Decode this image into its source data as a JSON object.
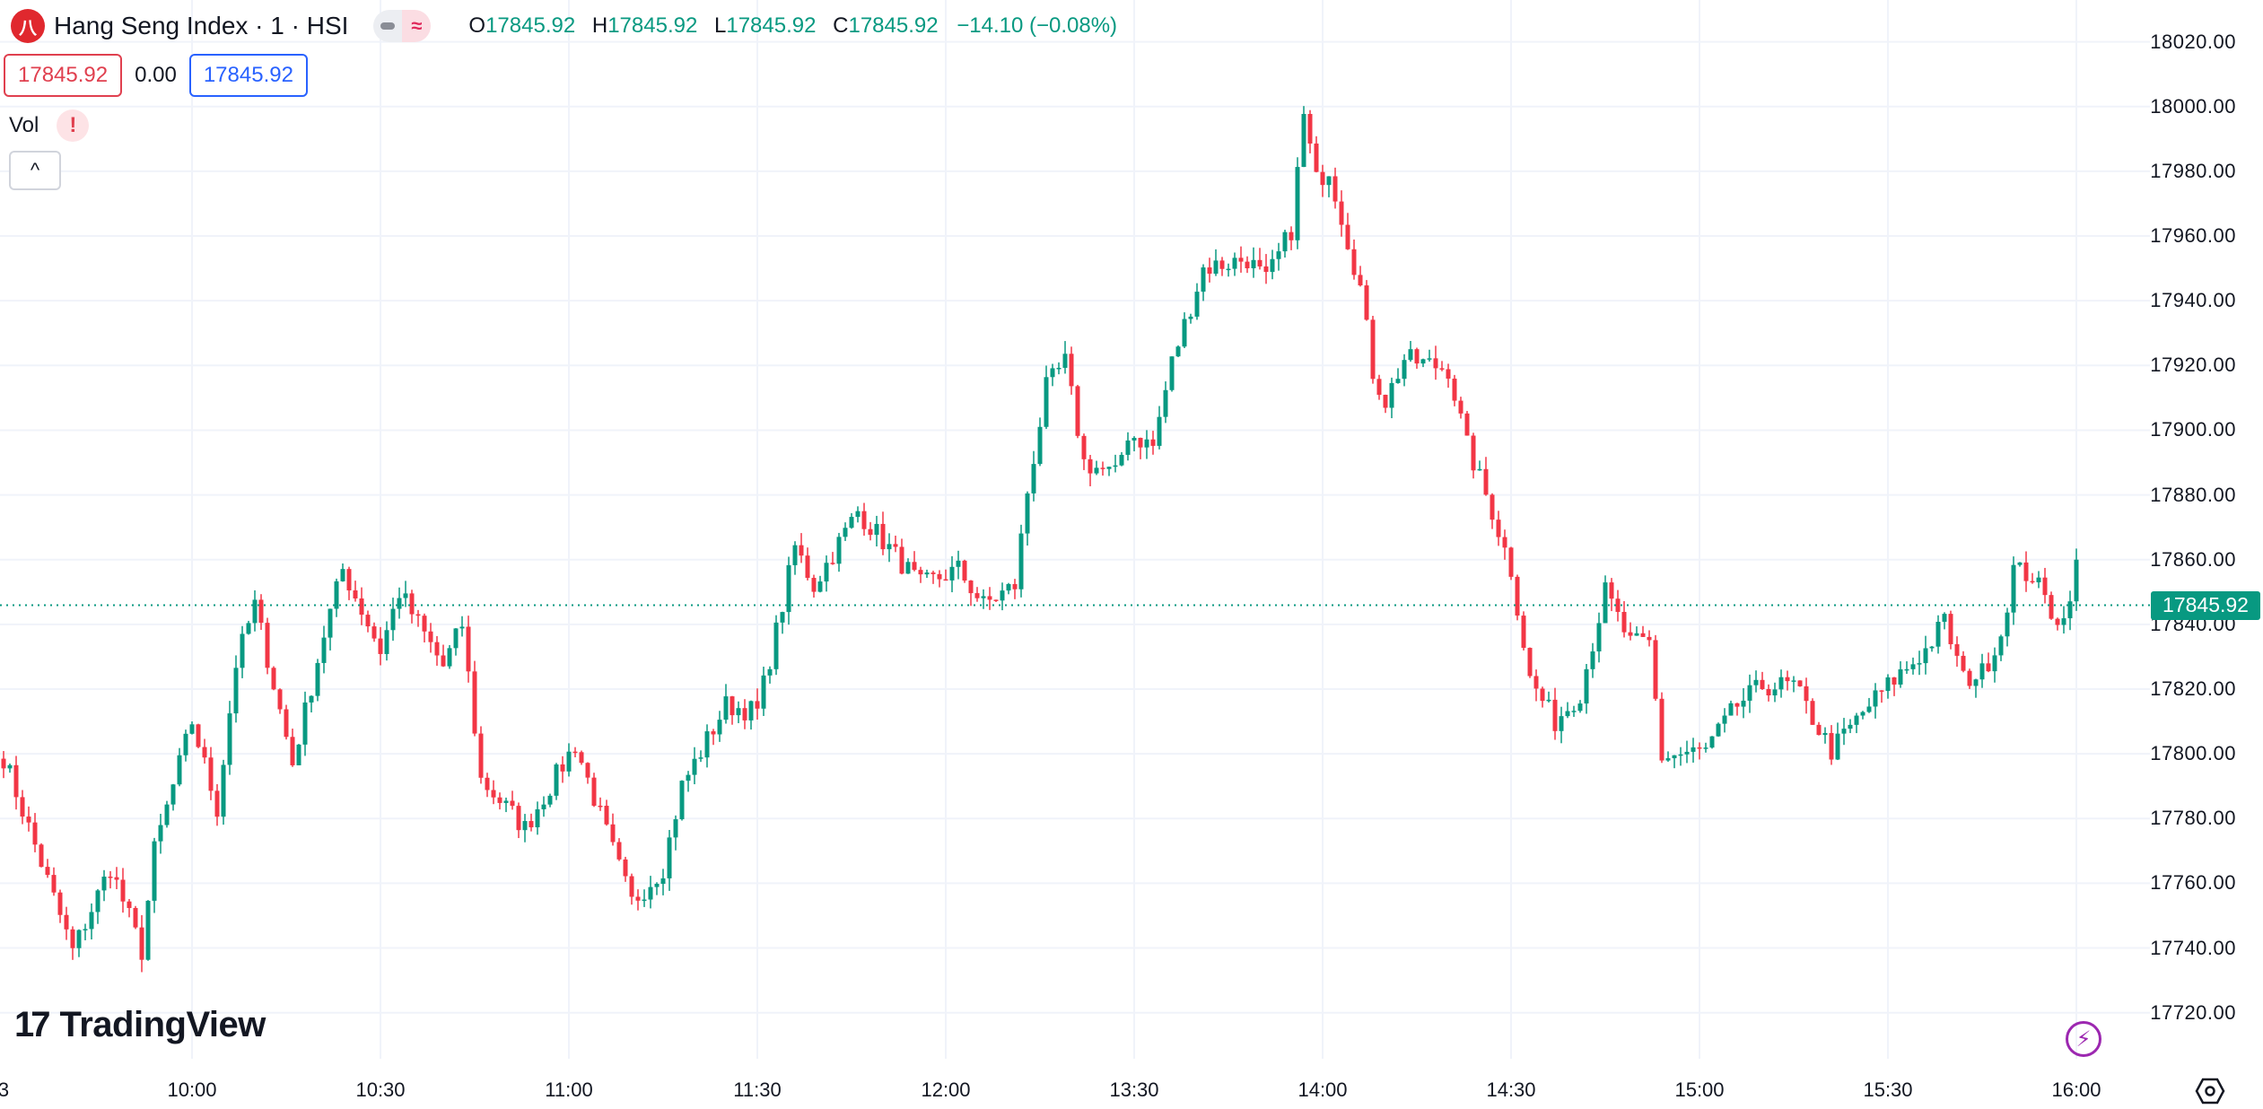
{
  "header": {
    "symbol_logo": "HK",
    "title": "Hang Seng Index · 1 · HSI",
    "ohlc": {
      "o_label": "O",
      "o": "17845.92",
      "h_label": "H",
      "h": "17845.92",
      "l_label": "L",
      "l": "17845.92",
      "c_label": "C",
      "c": "17845.92",
      "change": "−14.10 (−0.08%)"
    },
    "sell_price": "17845.92",
    "spread": "0.00",
    "buy_price": "17845.92",
    "vol_label": "Vol",
    "warning_icon": "!",
    "collapse_icon": "^"
  },
  "branding": {
    "logo_text": "TradingView",
    "logo_mark": "17"
  },
  "colors": {
    "up": "#089981",
    "down": "#f23645",
    "grid": "#f0f3fa"
  },
  "chart_data": {
    "type": "candlestick",
    "title": "Hang Seng Index · 1 · HSI",
    "interval": "1 minute",
    "ylim": [
      17710,
      18030
    ],
    "yticks": [
      "18020.00",
      "18000.00",
      "17980.00",
      "17960.00",
      "17940.00",
      "17920.00",
      "17900.00",
      "17880.00",
      "17860.00",
      "17840.00",
      "17820.00",
      "17800.00",
      "17780.00",
      "17760.00",
      "17740.00",
      "17720.00"
    ],
    "xticks": [
      {
        "label": "3",
        "index": 0
      },
      {
        "label": "10:00",
        "index": 30
      },
      {
        "label": "10:30",
        "index": 60
      },
      {
        "label": "11:00",
        "index": 90
      },
      {
        "label": "11:30",
        "index": 120
      },
      {
        "label": "12:00",
        "index": 150
      },
      {
        "label": "13:30",
        "index": 180
      },
      {
        "label": "14:00",
        "index": 210
      },
      {
        "label": "14:30",
        "index": 240
      },
      {
        "label": "15:00",
        "index": 270
      },
      {
        "label": "15:30",
        "index": 300
      },
      {
        "label": "16:00",
        "index": 330
      }
    ],
    "last_price": "17845.92",
    "last_price_value": 17845.92,
    "close_path": [
      [
        0,
        17799
      ],
      [
        11,
        17739
      ],
      [
        17,
        17765
      ],
      [
        22,
        17739
      ],
      [
        24,
        17770
      ],
      [
        30,
        17810
      ],
      [
        34,
        17783
      ],
      [
        37,
        17828
      ],
      [
        40,
        17846
      ],
      [
        46,
        17797
      ],
      [
        51,
        17837
      ],
      [
        54,
        17857
      ],
      [
        60,
        17832
      ],
      [
        63,
        17850
      ],
      [
        70,
        17827
      ],
      [
        73,
        17840
      ],
      [
        76,
        17792
      ],
      [
        83,
        17777
      ],
      [
        91,
        17803
      ],
      [
        97,
        17770
      ],
      [
        100,
        17754
      ],
      [
        105,
        17765
      ],
      [
        108,
        17790
      ],
      [
        115,
        17815
      ],
      [
        120,
        17813
      ],
      [
        124,
        17846
      ],
      [
        126,
        17864
      ],
      [
        129,
        17852
      ],
      [
        136,
        17875
      ],
      [
        146,
        17852
      ],
      [
        152,
        17857
      ],
      [
        156,
        17846
      ],
      [
        161,
        17852
      ],
      [
        163,
        17881
      ],
      [
        166,
        17913
      ],
      [
        169,
        17921
      ],
      [
        172,
        17890
      ],
      [
        177,
        17886
      ],
      [
        179,
        17899
      ],
      [
        183,
        17895
      ],
      [
        186,
        17921
      ],
      [
        191,
        17950
      ],
      [
        198,
        17953
      ],
      [
        201,
        17946
      ],
      [
        205,
        17962
      ],
      [
        207,
        17997
      ],
      [
        209,
        17977
      ],
      [
        211,
        17981
      ],
      [
        216,
        17944
      ],
      [
        218,
        17918
      ],
      [
        220,
        17909
      ],
      [
        223,
        17922
      ],
      [
        230,
        17919
      ],
      [
        233,
        17895
      ],
      [
        237,
        17875
      ],
      [
        240,
        17857
      ],
      [
        243,
        17823
      ],
      [
        247,
        17810
      ],
      [
        251,
        17819
      ],
      [
        255,
        17850
      ],
      [
        259,
        17834
      ],
      [
        262,
        17834
      ],
      [
        264,
        17799
      ],
      [
        271,
        17801
      ],
      [
        276,
        17815
      ],
      [
        280,
        17821
      ],
      [
        285,
        17821
      ],
      [
        291,
        17801
      ],
      [
        297,
        17815
      ],
      [
        301,
        17823
      ],
      [
        306,
        17832
      ],
      [
        309,
        17841
      ],
      [
        312,
        17823
      ],
      [
        315,
        17825
      ],
      [
        318,
        17837
      ],
      [
        320,
        17857
      ],
      [
        323,
        17855
      ],
      [
        326,
        17844
      ],
      [
        328,
        17841
      ],
      [
        330,
        17860
      ],
      [
        331,
        17845.92
      ]
    ]
  }
}
